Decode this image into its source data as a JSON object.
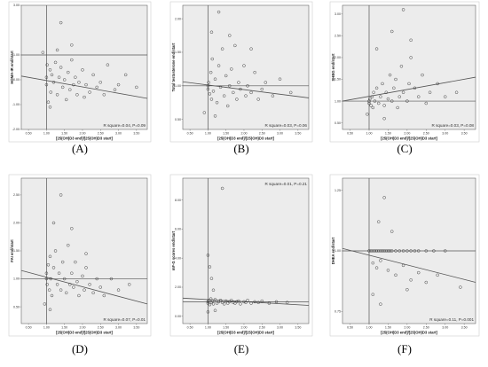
{
  "chart_data": [
    {
      "type": "scatter",
      "panel_label": "(A)",
      "xlabel": "[25(OH)D3 end]/[25(OH)D3 start]",
      "ylabel": "HOMA-IR end/start",
      "annotation": "R square=0.04, P=0.09",
      "x_ticks": [
        "0.50",
        "1.00",
        "1.50",
        "2.00",
        "2.50",
        "3.00",
        "3.50"
      ],
      "y_ticks": [
        "3.00",
        "1.00",
        "0.00",
        "-1.00",
        "-2.00"
      ],
      "xlim": [
        0.3,
        3.8
      ],
      "ylim": [
        -2.0,
        3.0
      ],
      "ref_x": 1.0,
      "ref_y": 1.0,
      "fit_line": [
        [
          0.3,
          0.15
        ],
        [
          3.8,
          -0.75
        ]
      ],
      "points": [
        [
          1.0,
          -0.2
        ],
        [
          1.0,
          0.1
        ],
        [
          1.02,
          0.6
        ],
        [
          1.05,
          -0.9
        ],
        [
          1.1,
          0.4
        ],
        [
          1.12,
          -0.5
        ],
        [
          1.15,
          0.2
        ],
        [
          1.2,
          -0.1
        ],
        [
          1.25,
          0.7
        ],
        [
          1.3,
          -0.6
        ],
        [
          1.35,
          0.1
        ],
        [
          1.4,
          0.5
        ],
        [
          1.45,
          -0.3
        ],
        [
          1.5,
          0.0
        ],
        [
          1.55,
          -0.8
        ],
        [
          1.6,
          0.3
        ],
        [
          1.65,
          -0.4
        ],
        [
          1.7,
          0.8
        ],
        [
          1.75,
          -0.2
        ],
        [
          1.8,
          0.1
        ],
        [
          1.85,
          -0.6
        ],
        [
          1.9,
          -0.1
        ],
        [
          2.0,
          0.4
        ],
        [
          2.05,
          -0.7
        ],
        [
          2.1,
          -0.2
        ],
        [
          2.2,
          -0.5
        ],
        [
          2.3,
          0.2
        ],
        [
          2.4,
          -0.3
        ],
        [
          2.5,
          -0.1
        ],
        [
          2.6,
          -0.6
        ],
        [
          2.7,
          0.6
        ],
        [
          2.9,
          -0.4
        ],
        [
          3.0,
          -0.2
        ],
        [
          3.2,
          0.2
        ],
        [
          3.5,
          -0.3
        ],
        [
          1.4,
          2.3
        ],
        [
          1.1,
          -1.1
        ],
        [
          1.3,
          1.2
        ],
        [
          1.7,
          1.4
        ],
        [
          0.9,
          1.1
        ]
      ]
    },
    {
      "type": "scatter",
      "panel_label": "(B)",
      "xlabel": "[25(OH)D3 end]/[25(OH)D3 start]",
      "ylabel": "Total testosterone end/start",
      "annotation": "R square=0.03, P=0.06",
      "x_ticks": [
        "0.50",
        "1.00",
        "1.50",
        "2.00",
        "2.50",
        "3.00",
        "3.50"
      ],
      "y_ticks": [
        "2.00",
        "1.50",
        "1.00",
        "0.50"
      ],
      "xlim": [
        0.3,
        3.8
      ],
      "ylim": [
        0.35,
        2.2
      ],
      "ref_x": 1.0,
      "ref_y": 1.0,
      "fit_line": [
        [
          0.3,
          1.06
        ],
        [
          3.8,
          0.82
        ]
      ],
      "points": [
        [
          1.0,
          0.95
        ],
        [
          1.02,
          1.05
        ],
        [
          1.05,
          0.88
        ],
        [
          1.08,
          1.2
        ],
        [
          1.1,
          0.8
        ],
        [
          1.12,
          1.4
        ],
        [
          1.15,
          0.92
        ],
        [
          1.2,
          1.1
        ],
        [
          1.25,
          0.75
        ],
        [
          1.3,
          1.3
        ],
        [
          1.35,
          0.98
        ],
        [
          1.4,
          1.55
        ],
        [
          1.45,
          0.85
        ],
        [
          1.5,
          1.15
        ],
        [
          1.55,
          0.7
        ],
        [
          1.6,
          1.0
        ],
        [
          1.65,
          1.25
        ],
        [
          1.7,
          0.9
        ],
        [
          1.75,
          1.6
        ],
        [
          1.8,
          0.8
        ],
        [
          1.85,
          1.05
        ],
        [
          1.9,
          0.95
        ],
        [
          2.0,
          1.3
        ],
        [
          2.05,
          0.85
        ],
        [
          2.1,
          1.0
        ],
        [
          2.2,
          0.9
        ],
        [
          2.3,
          1.2
        ],
        [
          2.4,
          0.8
        ],
        [
          2.5,
          0.95
        ],
        [
          2.6,
          1.05
        ],
        [
          2.8,
          0.85
        ],
        [
          3.0,
          1.1
        ],
        [
          3.3,
          0.9
        ],
        [
          1.3,
          2.1
        ],
        [
          1.1,
          1.8
        ],
        [
          1.6,
          1.75
        ],
        [
          0.9,
          0.6
        ],
        [
          1.2,
          0.55
        ],
        [
          2.2,
          1.55
        ],
        [
          1.0,
          1.0
        ]
      ]
    },
    {
      "type": "scatter",
      "panel_label": "(C)",
      "xlabel": "[25(OH)D3 end]/[25(OH)D3 start]",
      "ylabel": "SHBG end/start",
      "annotation": "R square=0.03, P=0.08",
      "x_ticks": [
        "0.50",
        "1.00",
        "1.50",
        "2.00",
        "2.50",
        "3.00",
        "3.50"
      ],
      "y_ticks": [
        "3.00",
        "2.50",
        "2.00",
        "1.50",
        "1.00",
        "0.50"
      ],
      "xlim": [
        0.3,
        3.8
      ],
      "ylim": [
        0.35,
        3.2
      ],
      "ref_x": 1.0,
      "ref_y": 1.0,
      "fit_line": [
        [
          0.3,
          1.0
        ],
        [
          3.8,
          1.55
        ]
      ],
      "points": [
        [
          1.0,
          1.0
        ],
        [
          1.0,
          0.95
        ],
        [
          1.02,
          1.05
        ],
        [
          1.05,
          0.9
        ],
        [
          1.08,
          1.1
        ],
        [
          1.1,
          0.85
        ],
        [
          1.12,
          1.2
        ],
        [
          1.15,
          1.0
        ],
        [
          1.2,
          1.3
        ],
        [
          1.25,
          0.95
        ],
        [
          1.3,
          1.1
        ],
        [
          1.35,
          1.4
        ],
        [
          1.4,
          0.9
        ],
        [
          1.45,
          1.2
        ],
        [
          1.5,
          1.05
        ],
        [
          1.55,
          1.6
        ],
        [
          1.6,
          1.0
        ],
        [
          1.65,
          1.3
        ],
        [
          1.7,
          1.5
        ],
        [
          1.75,
          0.85
        ],
        [
          1.8,
          1.1
        ],
        [
          1.85,
          1.8
        ],
        [
          1.9,
          1.2
        ],
        [
          2.0,
          1.0
        ],
        [
          2.05,
          1.4
        ],
        [
          2.1,
          2.0
        ],
        [
          2.2,
          1.3
        ],
        [
          2.3,
          1.1
        ],
        [
          2.4,
          1.6
        ],
        [
          2.5,
          0.95
        ],
        [
          2.6,
          1.2
        ],
        [
          2.8,
          1.4
        ],
        [
          3.0,
          1.1
        ],
        [
          3.3,
          1.2
        ],
        [
          1.9,
          3.1
        ],
        [
          1.2,
          2.2
        ],
        [
          2.1,
          2.4
        ],
        [
          1.6,
          2.6
        ],
        [
          0.95,
          0.7
        ],
        [
          1.4,
          0.6
        ]
      ]
    },
    {
      "type": "scatter",
      "panel_label": "(D)",
      "xlabel": "[25(OH)D3 end]/[25(OH)D3 start]",
      "ylabel": "FAI end/start",
      "annotation": "R square=0.07, P=0.01",
      "x_ticks": [
        "0.50",
        "1.00",
        "1.50",
        "2.00",
        "2.50",
        "3.00",
        "3.50"
      ],
      "y_ticks": [
        "2.50",
        "2.00",
        "1.50",
        "1.00",
        "0.50"
      ],
      "xlim": [
        0.3,
        3.8
      ],
      "ylim": [
        0.2,
        2.8
      ],
      "ref_x": 1.0,
      "ref_y": 1.0,
      "fit_line": [
        [
          0.3,
          1.15
        ],
        [
          3.8,
          0.55
        ]
      ],
      "points": [
        [
          1.0,
          1.0
        ],
        [
          1.0,
          1.1
        ],
        [
          1.02,
          0.9
        ],
        [
          1.05,
          1.25
        ],
        [
          1.08,
          0.8
        ],
        [
          1.1,
          1.4
        ],
        [
          1.12,
          1.0
        ],
        [
          1.15,
          0.7
        ],
        [
          1.2,
          1.2
        ],
        [
          1.25,
          1.5
        ],
        [
          1.3,
          0.9
        ],
        [
          1.35,
          1.1
        ],
        [
          1.4,
          0.8
        ],
        [
          1.45,
          1.3
        ],
        [
          1.5,
          1.0
        ],
        [
          1.55,
          0.75
        ],
        [
          1.6,
          1.6
        ],
        [
          1.65,
          0.9
        ],
        [
          1.7,
          1.1
        ],
        [
          1.75,
          0.85
        ],
        [
          1.8,
          1.3
        ],
        [
          1.85,
          0.95
        ],
        [
          1.9,
          0.7
        ],
        [
          2.0,
          1.05
        ],
        [
          2.05,
          0.8
        ],
        [
          2.1,
          1.2
        ],
        [
          2.2,
          0.9
        ],
        [
          2.3,
          0.75
        ],
        [
          2.4,
          1.0
        ],
        [
          2.5,
          0.85
        ],
        [
          2.6,
          0.7
        ],
        [
          2.8,
          1.0
        ],
        [
          3.0,
          0.8
        ],
        [
          3.3,
          0.9
        ],
        [
          1.4,
          2.5
        ],
        [
          1.2,
          2.0
        ],
        [
          1.7,
          1.9
        ],
        [
          0.95,
          0.55
        ],
        [
          1.1,
          0.45
        ],
        [
          2.1,
          1.45
        ]
      ]
    },
    {
      "type": "scatter",
      "panel_label": "(E)",
      "xlabel": "[25(OH)D3 end]/[25(OH)D3 start]",
      "ylabel": "mF-G scores end/start",
      "annotation": "R square=0.01, P=0.21",
      "x_ticks": [
        "0.50",
        "1.00",
        "1.50",
        "2.00",
        "2.50",
        "3.00",
        "3.50"
      ],
      "y_ticks": [
        "8.00",
        "6.00",
        "4.00",
        "2.00",
        "0.00"
      ],
      "xlim": [
        0.3,
        3.8
      ],
      "ylim": [
        -0.5,
        9.5
      ],
      "ref_x": 1.0,
      "ref_y": 1.0,
      "fit_line": [
        [
          0.3,
          1.25
        ],
        [
          3.8,
          0.75
        ]
      ],
      "points": [
        [
          1.0,
          1.0
        ],
        [
          1.0,
          0.9
        ],
        [
          1.02,
          1.1
        ],
        [
          1.05,
          0.8
        ],
        [
          1.08,
          1.2
        ],
        [
          1.1,
          0.95
        ],
        [
          1.12,
          1.05
        ],
        [
          1.15,
          0.85
        ],
        [
          1.2,
          1.15
        ],
        [
          1.25,
          0.9
        ],
        [
          1.3,
          1.0
        ],
        [
          1.35,
          1.1
        ],
        [
          1.4,
          0.95
        ],
        [
          1.45,
          0.85
        ],
        [
          1.5,
          1.05
        ],
        [
          1.55,
          0.9
        ],
        [
          1.6,
          1.0
        ],
        [
          1.65,
          1.1
        ],
        [
          1.7,
          0.95
        ],
        [
          1.75,
          0.9
        ],
        [
          1.8,
          1.0
        ],
        [
          1.85,
          1.05
        ],
        [
          1.9,
          0.85
        ],
        [
          2.0,
          1.0
        ],
        [
          2.05,
          0.95
        ],
        [
          2.1,
          1.1
        ],
        [
          2.2,
          0.9
        ],
        [
          2.3,
          1.0
        ],
        [
          2.4,
          0.95
        ],
        [
          2.5,
          1.05
        ],
        [
          2.7,
          0.9
        ],
        [
          2.9,
          1.0
        ],
        [
          3.2,
          0.95
        ],
        [
          1.4,
          8.8
        ],
        [
          1.0,
          4.2
        ],
        [
          1.05,
          3.4
        ],
        [
          1.1,
          2.6
        ],
        [
          1.0,
          0.3
        ],
        [
          1.2,
          0.4
        ],
        [
          1.15,
          1.8
        ]
      ]
    },
    {
      "type": "scatter",
      "panel_label": "(F)",
      "xlabel": "[25(OH)D3 end]/[25(OH)D3 start]",
      "ylabel": "DHEA end/start",
      "annotation": "R square=0.11, P=0.001",
      "x_ticks": [
        "0.50",
        "1.00",
        "1.50",
        "2.00",
        "2.50",
        "3.00",
        "3.50"
      ],
      "y_ticks": [
        "1.25",
        "1.00",
        "0.75"
      ],
      "xlim": [
        0.3,
        3.8
      ],
      "ylim": [
        0.7,
        1.3
      ],
      "ref_x": 1.0,
      "ref_y": 1.0,
      "fit_line": [
        [
          0.3,
          1.01
        ],
        [
          3.8,
          0.87
        ]
      ],
      "points": [
        [
          1.0,
          1.0
        ],
        [
          1.05,
          1.0
        ],
        [
          1.1,
          1.0
        ],
        [
          1.15,
          1.0
        ],
        [
          1.2,
          1.0
        ],
        [
          1.25,
          1.0
        ],
        [
          1.3,
          1.0
        ],
        [
          1.35,
          1.0
        ],
        [
          1.4,
          1.0
        ],
        [
          1.45,
          1.0
        ],
        [
          1.5,
          1.0
        ],
        [
          1.55,
          1.0
        ],
        [
          1.6,
          1.0
        ],
        [
          1.7,
          1.0
        ],
        [
          1.8,
          1.0
        ],
        [
          1.9,
          1.0
        ],
        [
          2.0,
          1.0
        ],
        [
          2.1,
          1.0
        ],
        [
          2.2,
          1.0
        ],
        [
          2.3,
          1.0
        ],
        [
          2.5,
          1.0
        ],
        [
          2.7,
          1.0
        ],
        [
          3.0,
          1.0
        ],
        [
          1.1,
          0.95
        ],
        [
          1.2,
          0.93
        ],
        [
          1.3,
          0.96
        ],
        [
          1.5,
          0.92
        ],
        [
          1.7,
          0.9
        ],
        [
          1.9,
          0.94
        ],
        [
          2.1,
          0.88
        ],
        [
          2.3,
          0.91
        ],
        [
          2.5,
          0.87
        ],
        [
          2.8,
          0.9
        ],
        [
          1.4,
          1.22
        ],
        [
          1.25,
          1.12
        ],
        [
          1.6,
          1.08
        ],
        [
          1.1,
          0.82
        ],
        [
          1.3,
          0.78
        ],
        [
          2.0,
          0.84
        ],
        [
          3.4,
          0.85
        ]
      ]
    }
  ]
}
